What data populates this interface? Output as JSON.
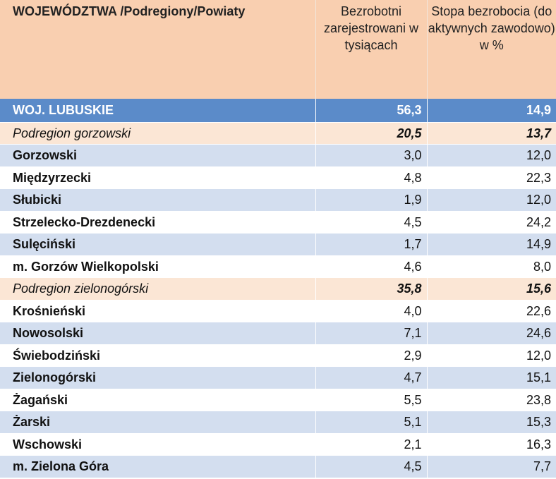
{
  "header": {
    "col1": "WOJEWÓDZTWA /Podregiony/Powiaty",
    "col2": "Bezrobotni zarejestrowani w tysiącach",
    "col3": "Stopa bezrobocia  (do aktywnych zawodowo) w %"
  },
  "rows": [
    {
      "name": "WOJ. LUBUSKIE",
      "unemployed": "56,3",
      "rate": "14,9",
      "type": "region"
    },
    {
      "name": "Podregion gorzowski",
      "unemployed": "20,5",
      "rate": "13,7",
      "type": "subregion"
    },
    {
      "name": "Gorzowski",
      "unemployed": "3,0",
      "rate": "12,0",
      "type": "blue"
    },
    {
      "name": "Międzyrzecki",
      "unemployed": "4,8",
      "rate": "22,3",
      "type": "white"
    },
    {
      "name": "Słubicki",
      "unemployed": "1,9",
      "rate": "12,0",
      "type": "blue"
    },
    {
      "name": "Strzelecko-Drezdenecki",
      "unemployed": "4,5",
      "rate": "24,2",
      "type": "white"
    },
    {
      "name": "Sulęciński",
      "unemployed": "1,7",
      "rate": "14,9",
      "type": "blue"
    },
    {
      "name": "m. Gorzów Wielkopolski",
      "unemployed": "4,6",
      "rate": "8,0",
      "type": "white"
    },
    {
      "name": "Podregion zielonogórski",
      "unemployed": "35,8",
      "rate": "15,6",
      "type": "subregion"
    },
    {
      "name": "Krośnieński",
      "unemployed": "4,0",
      "rate": "22,6",
      "type": "white"
    },
    {
      "name": "Nowosolski",
      "unemployed": "7,1",
      "rate": "24,6",
      "type": "blue"
    },
    {
      "name": "Świebodziński",
      "unemployed": "2,9",
      "rate": "12,0",
      "type": "white"
    },
    {
      "name": "Zielonogórski",
      "unemployed": "4,7",
      "rate": "15,1",
      "type": "blue"
    },
    {
      "name": "Żagański",
      "unemployed": "5,5",
      "rate": "23,8",
      "type": "white"
    },
    {
      "name": "Żarski",
      "unemployed": "5,1",
      "rate": "15,3",
      "type": "blue"
    },
    {
      "name": "Wschowski",
      "unemployed": "2,1",
      "rate": "16,3",
      "type": "white"
    },
    {
      "name": "m. Zielona Góra",
      "unemployed": "4,5",
      "rate": "7,7",
      "type": "blue"
    }
  ],
  "colors": {
    "header_bg": "#f9cfb0",
    "region_bg": "#5b8bc9",
    "subregion_bg": "#fbe6d5",
    "band_blue": "#d3deef"
  }
}
